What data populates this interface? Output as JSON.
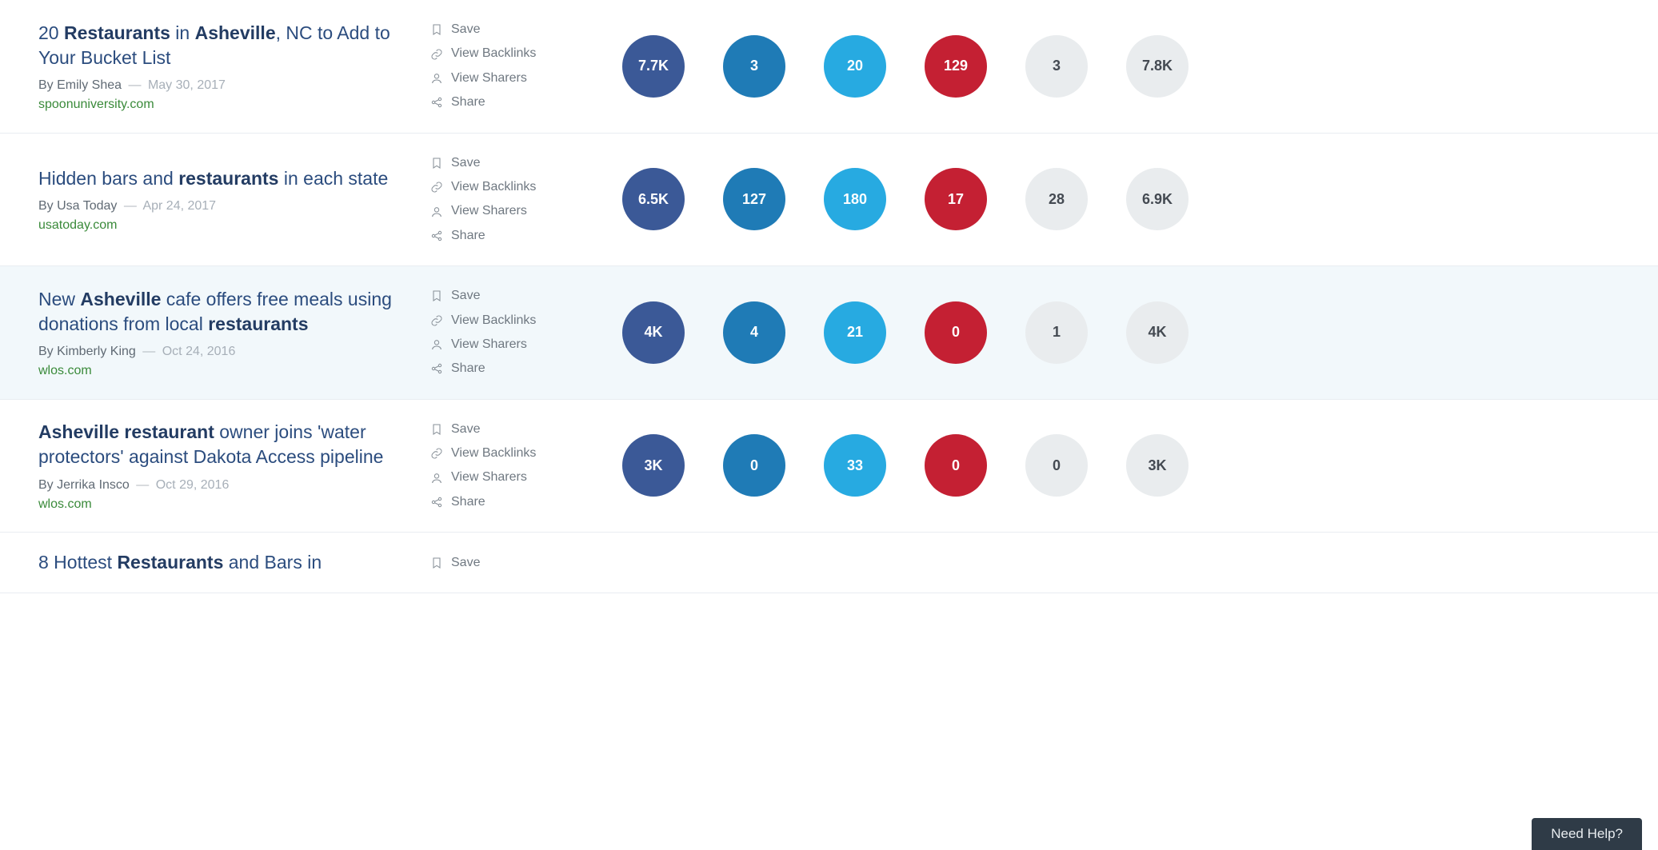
{
  "actions": {
    "save": "Save",
    "view_backlinks": "View Backlinks",
    "view_sharers": "View Sharers",
    "share": "Share"
  },
  "bubble_colors": {
    "facebook": "#3b5997",
    "linkedin": "#1f7bb6",
    "twitter": "#27aae1",
    "pinterest": "#c42033",
    "gray": "#e9ecee",
    "total": "#e9ecee"
  },
  "help_label": "Need Help?",
  "rows": [
    {
      "title_html": "20 <b>Restaurants</b> in <b>Asheville</b>, NC to Add to Your Bucket List",
      "author": "Emily Shea",
      "date": "May 30, 2017",
      "domain": "spoonuniversity.com",
      "highlight": false,
      "partial": false,
      "metrics": {
        "facebook": "7.7K",
        "linkedin": "3",
        "twitter": "20",
        "pinterest": "129",
        "gray": "3",
        "total": "7.8K"
      }
    },
    {
      "title_html": "Hidden bars and <b>restaurants</b> in each state",
      "author": "Usa Today",
      "date": "Apr 24, 2017",
      "domain": "usatoday.com",
      "highlight": false,
      "partial": false,
      "metrics": {
        "facebook": "6.5K",
        "linkedin": "127",
        "twitter": "180",
        "pinterest": "17",
        "gray": "28",
        "total": "6.9K"
      }
    },
    {
      "title_html": "New <b>Asheville</b> cafe offers free meals using donations from local <b>restaurants</b>",
      "author": "Kimberly King",
      "date": "Oct 24, 2016",
      "domain": "wlos.com",
      "highlight": true,
      "partial": false,
      "metrics": {
        "facebook": "4K",
        "linkedin": "4",
        "twitter": "21",
        "pinterest": "0",
        "gray": "1",
        "total": "4K"
      }
    },
    {
      "title_html": "<b>Asheville restaurant</b> owner joins 'water protectors' against Dakota Access pipeline",
      "author": "Jerrika Insco",
      "date": "Oct 29, 2016",
      "domain": "wlos.com",
      "highlight": false,
      "partial": false,
      "metrics": {
        "facebook": "3K",
        "linkedin": "0",
        "twitter": "33",
        "pinterest": "0",
        "gray": "0",
        "total": "3K"
      }
    },
    {
      "title_html": "8 Hottest <b>Restaurants</b> and Bars in",
      "author": "",
      "date": "",
      "domain": "",
      "highlight": false,
      "partial": true,
      "metrics": null
    }
  ]
}
